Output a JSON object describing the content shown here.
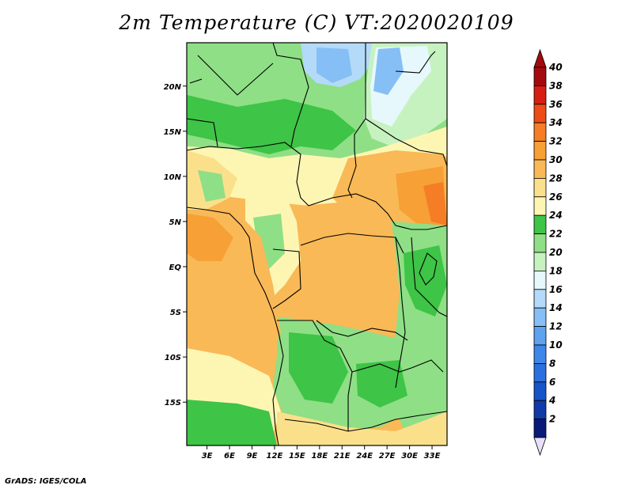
{
  "title": "2m Temperature (C) VT:2020020109",
  "credit": "GrADS: IGES/COLA",
  "map": {
    "lon_labels": [
      "3E",
      "6E",
      "9E",
      "12E",
      "15E",
      "18E",
      "21E",
      "24E",
      "27E",
      "30E",
      "33E"
    ],
    "lon_values": [
      3,
      6,
      9,
      12,
      15,
      18,
      21,
      24,
      27,
      30,
      33
    ],
    "lat_labels": [
      "20N",
      "15N",
      "10N",
      "5N",
      "EQ",
      "5S",
      "10S",
      "15S"
    ],
    "lat_values": [
      20,
      15,
      10,
      5,
      0,
      -5,
      -10,
      -15
    ],
    "lon_range": [
      0.3,
      35.0
    ],
    "lat_range": [
      -19.8,
      24.8
    ]
  },
  "colorbar": {
    "labels": [
      "2",
      "4",
      "6",
      "8",
      "10",
      "12",
      "14",
      "16",
      "18",
      "20",
      "22",
      "24",
      "26",
      "28",
      "30",
      "32",
      "34",
      "36",
      "38",
      "40"
    ],
    "colors": [
      "#0a1a78",
      "#0f3aa8",
      "#1654c8",
      "#2a6fe0",
      "#3f86ea",
      "#5ea2f0",
      "#86bff5",
      "#b3daf8",
      "#e6f8fb",
      "#c6f2c0",
      "#8fdf86",
      "#3ec446",
      "#fdf6b3",
      "#fbe08b",
      "#f9b957",
      "#f7a035",
      "#f57d26",
      "#ee4b17",
      "#d81d12",
      "#a30a0e"
    ],
    "low_color": "#e8e0f8",
    "high_color": "#a30a0e"
  }
}
